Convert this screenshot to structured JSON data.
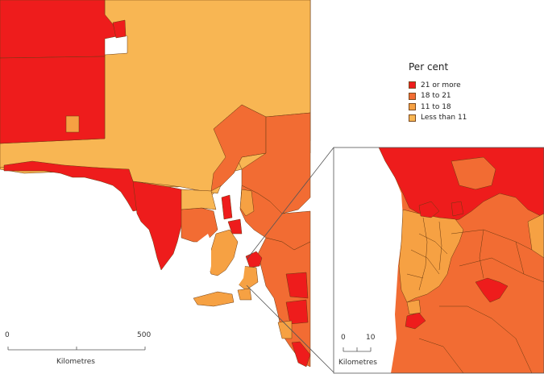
{
  "legend": {
    "title": "Per cent",
    "classes": [
      {
        "label": "21 or more",
        "color": "#ee1c1c"
      },
      {
        "label": "18 to 21",
        "color": "#f26c33"
      },
      {
        "label": "11 to 18",
        "color": "#f6a143"
      },
      {
        "label": "Less than 11",
        "color": "#f8b653"
      }
    ]
  },
  "main_scale": {
    "start": "0",
    "end": "500",
    "unit": "Kilometres"
  },
  "inset_scale": {
    "start": "0",
    "end": "10",
    "unit": "Kilometres"
  },
  "colors": {
    "border": "#6b3a10",
    "water": "#ffffff",
    "frame": "#555555"
  }
}
